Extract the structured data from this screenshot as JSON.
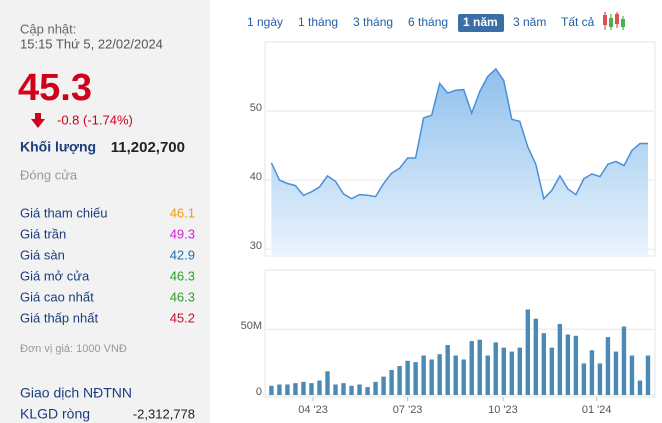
{
  "sidebar": {
    "update_label": "Cập nhật:",
    "update_time": "15:15 Thứ 5, 22/02/2024",
    "price": "45.3",
    "change": "-0.8 (-1.74%)",
    "volume_label": "Khối lượng",
    "volume": "11,202,700",
    "status": "Đóng cửa",
    "stats": [
      {
        "label": "Giá tham chiếu",
        "value": "46.1",
        "color": "#f39c12"
      },
      {
        "label": "Giá trần",
        "value": "49.3",
        "color": "#d41fd4"
      },
      {
        "label": "Giá sàn",
        "value": "42.9",
        "color": "#1f6fb5"
      },
      {
        "label": "Giá mở cửa",
        "value": "46.3",
        "color": "#2e9e2e"
      },
      {
        "label": "Giá cao nhất",
        "value": "46.3",
        "color": "#2e9e2e"
      },
      {
        "label": "Giá thấp nhất",
        "value": "45.2",
        "color": "#c8102e"
      }
    ],
    "unit_note": "Đơn vị giá: 1000 VNĐ",
    "foreign_title": "Giao dịch NĐTNN",
    "net_label": "KLGD ròng",
    "net_value": "-2,312,778"
  },
  "ranges": {
    "options": [
      "1 ngày",
      "1 tháng",
      "3 tháng",
      "6 tháng",
      "1 năm",
      "3 năm",
      "Tất cả"
    ],
    "active": 4
  },
  "chart_data": [
    {
      "type": "area",
      "color": "#4a90d9",
      "xlim": [
        -0.8,
        47.5
      ],
      "ylim": [
        29,
        60
      ],
      "yticks": [
        30,
        40,
        50
      ],
      "grid": true,
      "values": [
        42.5,
        40,
        39.5,
        39.2,
        37.8,
        38.3,
        39,
        40.6,
        39.8,
        38,
        37.3,
        37.9,
        37.8,
        37.6,
        39.5,
        41,
        41.7,
        43.2,
        43.2,
        49,
        49.4,
        54,
        52.6,
        53,
        53.1,
        49.7,
        52.8,
        55,
        56.1,
        54.4,
        48.8,
        48.5,
        44.8,
        42.3,
        37.3,
        38.5,
        40.6,
        38.7,
        37.9,
        40.2,
        40.9,
        40.5,
        42.3,
        42.7,
        42.1,
        44.3,
        45.3,
        45.3
      ]
    },
    {
      "type": "bar",
      "color": "#4a8ab5",
      "xlim": [
        -0.8,
        47.5
      ],
      "ylim": [
        0,
        95
      ],
      "yticks": [
        0,
        {
          "value": 50,
          "label": "50M"
        }
      ],
      "grid": true,
      "xticks": [
        {
          "value": 5.2,
          "label": "04 '23"
        },
        {
          "value": 17,
          "label": "07 '23"
        },
        {
          "value": 28.9,
          "label": "10 '23"
        },
        {
          "value": 40.6,
          "label": "01 '24"
        }
      ],
      "values": [
        7,
        8,
        8,
        9,
        10,
        9,
        11,
        18,
        8,
        9,
        7,
        8,
        6,
        10,
        14,
        19,
        22,
        26,
        25,
        30,
        27,
        31,
        38,
        30,
        27,
        41,
        42,
        30,
        40,
        36,
        33,
        36,
        65,
        58,
        47,
        36,
        54,
        46,
        45,
        24,
        34,
        24,
        44,
        33,
        52,
        30,
        11,
        30
      ]
    }
  ]
}
